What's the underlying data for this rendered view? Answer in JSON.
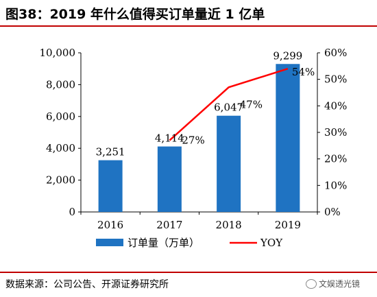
{
  "figure_title": "图38：2019 年什么值得买订单量近 1 亿单",
  "source_note": "数据来源：公司公告、开源证券研究所",
  "watermark_text": "文娱透光镜",
  "colors": {
    "bar": "#1F73C2",
    "line": "#FF0000",
    "rule": "#C00000"
  },
  "chart_data": {
    "type": "bar",
    "categories": [
      "2016",
      "2017",
      "2018",
      "2019"
    ],
    "series": [
      {
        "name": "订单量（万单）",
        "type": "bar",
        "axis": "left",
        "values": [
          3251,
          4114,
          6047,
          9299
        ],
        "labels": [
          "3,251",
          "4,114",
          "6,047",
          "9,299"
        ]
      },
      {
        "name": "YOY",
        "type": "line",
        "axis": "right",
        "values": [
          null,
          27,
          47,
          54
        ],
        "labels": [
          "",
          "27%",
          "47%",
          "54%"
        ]
      }
    ],
    "y_left": {
      "min": 0,
      "max": 10000,
      "ticks": [
        "0",
        "2,000",
        "4,000",
        "6,000",
        "8,000",
        "10,000"
      ]
    },
    "y_right": {
      "min": 0,
      "max": 60,
      "ticks": [
        "0%",
        "10%",
        "20%",
        "30%",
        "40%",
        "50%",
        "60%"
      ]
    },
    "legend": {
      "position": "bottom",
      "items": [
        "订单量（万单）",
        "YOY"
      ]
    },
    "grid": false
  }
}
